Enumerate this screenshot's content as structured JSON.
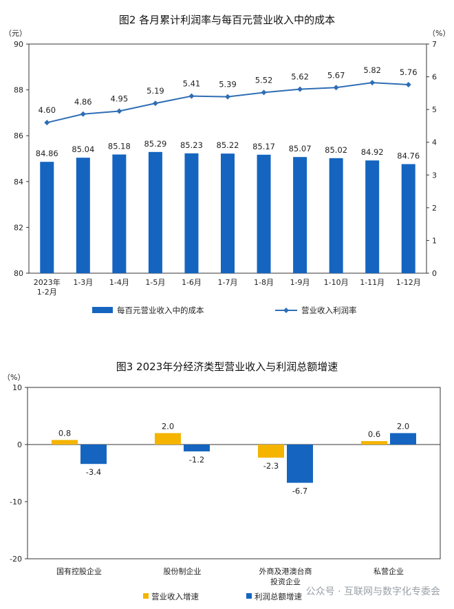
{
  "watermark": "公众号 · 互联网与数字化专委会",
  "chart_data": [
    {
      "type": "bar+line",
      "title": "图2  各月累计利润率与每百元营业收入中的成本",
      "left_unit": "（元）",
      "right_unit": "（%）",
      "categories": [
        "2023年\n1-2月",
        "1-3月",
        "1-4月",
        "1-5月",
        "1-6月",
        "1-7月",
        "1-8月",
        "1-9月",
        "1-10月",
        "1-11月",
        "1-12月"
      ],
      "left_axis": {
        "min": 80,
        "max": 90,
        "ticks": [
          80,
          82,
          84,
          86,
          88,
          90
        ]
      },
      "right_axis": {
        "min": 0,
        "max": 7,
        "ticks": [
          0,
          1,
          2,
          3,
          4,
          5,
          6,
          7
        ]
      },
      "series": [
        {
          "name": "每百元营业收入中的成本",
          "kind": "bar",
          "axis": "left",
          "color": "#1565c0",
          "values": [
            84.86,
            85.04,
            85.18,
            85.29,
            85.23,
            85.22,
            85.17,
            85.07,
            85.02,
            84.92,
            84.76
          ],
          "labels": [
            "84.86",
            "85.04",
            "85.18",
            "85.29",
            "85.23",
            "85.22",
            "85.17",
            "85.07",
            "85.02",
            "84.92",
            "84.76"
          ]
        },
        {
          "name": "营业收入利润率",
          "kind": "line",
          "axis": "right",
          "color": "#2e6db4",
          "values": [
            4.6,
            4.86,
            4.95,
            5.19,
            5.41,
            5.39,
            5.52,
            5.62,
            5.67,
            5.82,
            5.76
          ],
          "labels": [
            "4.60",
            "4.86",
            "4.95",
            "5.19",
            "5.41",
            "5.39",
            "5.52",
            "5.62",
            "5.67",
            "5.82",
            "5.76"
          ]
        }
      ]
    },
    {
      "type": "bar",
      "title": "图3  2023年分经济类型营业收入与利润总额增速",
      "y_unit": "（%）",
      "categories": [
        "国有控股企业",
        "股份制企业",
        "外商及港澳台商\n投资企业",
        "私营企业"
      ],
      "y_axis": {
        "min": -20,
        "max": 10,
        "ticks": [
          10,
          0,
          -10,
          -20
        ]
      },
      "series": [
        {
          "name": "营业收入增速",
          "color": "#f4b400",
          "values": [
            0.8,
            2.0,
            -2.3,
            0.6
          ],
          "labels": [
            "0.8",
            "2.0",
            "-2.3",
            "0.6"
          ]
        },
        {
          "name": "利润总额增速",
          "color": "#1565c0",
          "values": [
            -3.4,
            -1.2,
            -6.7,
            2.0
          ],
          "labels": [
            "-3.4",
            "-1.2",
            "-6.7",
            "2.0"
          ]
        }
      ]
    }
  ]
}
